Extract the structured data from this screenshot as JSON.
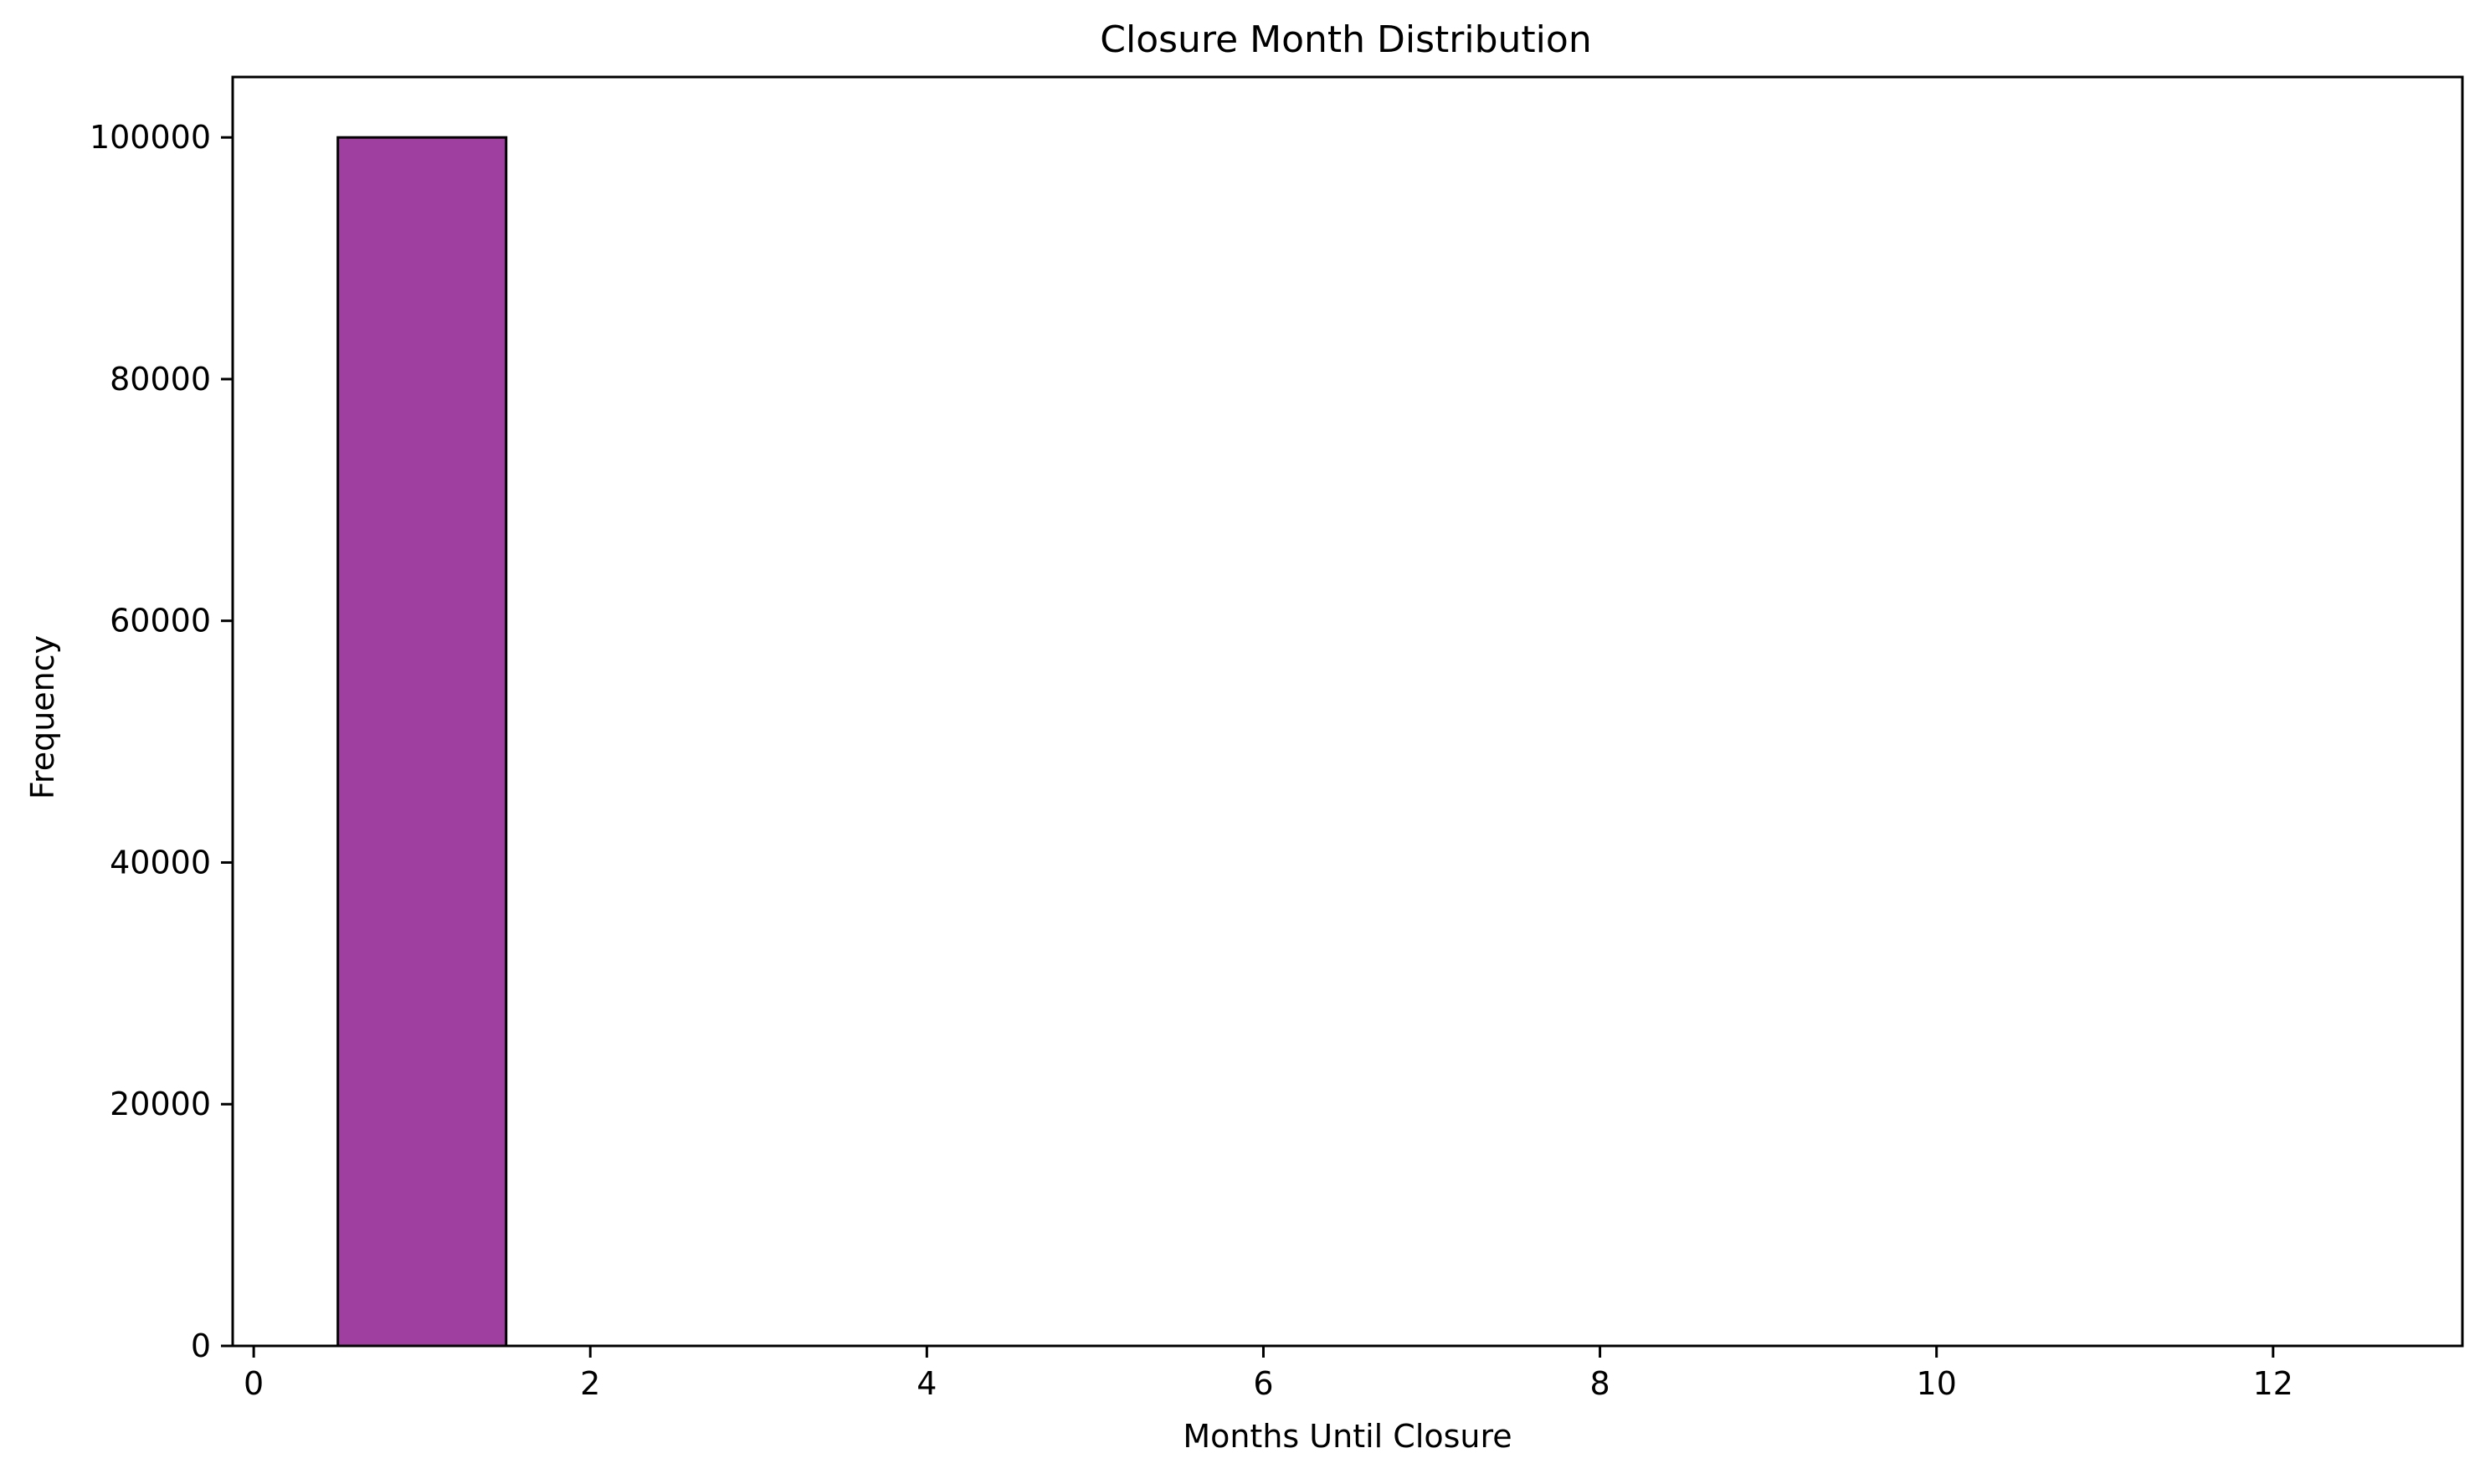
{
  "chart_data": {
    "type": "bar",
    "title": "Closure Month Distribution",
    "xlabel": "Months Until Closure",
    "ylabel": "Frequency",
    "xlim": [
      -0.125,
      13.125
    ],
    "ylim": [
      0,
      105000
    ],
    "xticks": [
      0,
      2,
      4,
      6,
      8,
      10,
      12
    ],
    "yticks": [
      0,
      20000,
      40000,
      60000,
      80000,
      100000
    ],
    "bins": [
      {
        "x0": 0.5,
        "x1": 1.5,
        "value": 100000
      },
      {
        "x0": 1.5,
        "x1": 2.5,
        "value": 0
      },
      {
        "x0": 2.5,
        "x1": 3.5,
        "value": 0
      },
      {
        "x0": 3.5,
        "x1": 4.5,
        "value": 0
      },
      {
        "x0": 4.5,
        "x1": 5.5,
        "value": 0
      },
      {
        "x0": 5.5,
        "x1": 6.5,
        "value": 0
      },
      {
        "x0": 6.5,
        "x1": 7.5,
        "value": 0
      },
      {
        "x0": 7.5,
        "x1": 8.5,
        "value": 0
      },
      {
        "x0": 8.5,
        "x1": 9.5,
        "value": 0
      },
      {
        "x0": 9.5,
        "x1": 10.5,
        "value": 0
      },
      {
        "x0": 10.5,
        "x1": 11.5,
        "value": 0
      },
      {
        "x0": 11.5,
        "x1": 12.5,
        "value": 0
      }
    ],
    "bar_color": "#9f3f9f",
    "edge_color": "#000000",
    "grid": false,
    "legend": "none"
  }
}
